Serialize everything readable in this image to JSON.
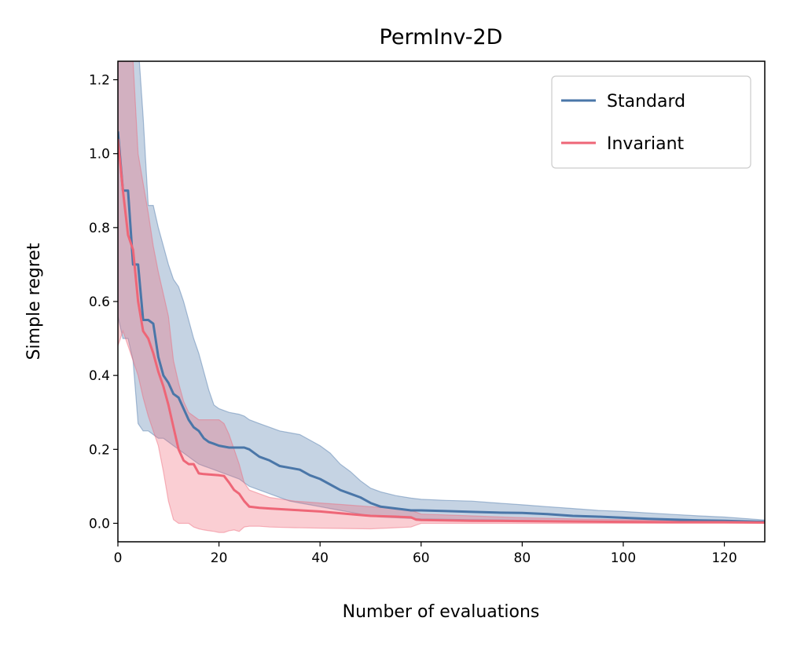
{
  "chart_data": {
    "type": "line",
    "title": "PermInv-2D",
    "xlabel": "Number of evaluations",
    "ylabel": "Simple regret",
    "xlim": [
      0,
      128
    ],
    "ylim": [
      -0.05,
      1.25
    ],
    "xticks": [
      0,
      20,
      40,
      60,
      80,
      100,
      120
    ],
    "xtick_labels": [
      "0",
      "20",
      "40",
      "60",
      "80",
      "100",
      "120"
    ],
    "yticks": [
      0.0,
      0.2,
      0.4,
      0.6,
      0.8,
      1.0,
      1.2
    ],
    "ytick_labels": [
      "0.0",
      "0.2",
      "0.4",
      "0.6",
      "0.8",
      "1.0",
      "1.2"
    ],
    "grid": false,
    "legend_position": "top-right",
    "series": [
      {
        "name": "Standard",
        "color": "#4a76a8",
        "x": [
          0,
          1,
          2,
          3,
          4,
          5,
          6,
          7,
          8,
          9,
          10,
          11,
          12,
          13,
          14,
          15,
          16,
          17,
          18,
          19,
          20,
          22,
          24,
          25,
          26,
          28,
          30,
          32,
          34,
          36,
          38,
          40,
          42,
          44,
          46,
          48,
          50,
          52,
          55,
          58,
          60,
          65,
          70,
          75,
          80,
          85,
          90,
          95,
          100,
          105,
          110,
          115,
          120,
          125,
          128
        ],
        "y": [
          1.06,
          0.9,
          0.9,
          0.7,
          0.7,
          0.55,
          0.55,
          0.54,
          0.45,
          0.4,
          0.38,
          0.35,
          0.34,
          0.31,
          0.28,
          0.26,
          0.25,
          0.23,
          0.22,
          0.215,
          0.21,
          0.205,
          0.205,
          0.205,
          0.2,
          0.18,
          0.17,
          0.155,
          0.15,
          0.145,
          0.13,
          0.12,
          0.105,
          0.09,
          0.08,
          0.07,
          0.055,
          0.045,
          0.04,
          0.035,
          0.035,
          0.033,
          0.031,
          0.029,
          0.028,
          0.025,
          0.02,
          0.018,
          0.015,
          0.012,
          0.01,
          0.008,
          0.007,
          0.005,
          0.004
        ],
        "upper": [
          1.3,
          1.3,
          1.3,
          1.3,
          1.3,
          1.1,
          0.86,
          0.86,
          0.8,
          0.75,
          0.7,
          0.66,
          0.64,
          0.6,
          0.55,
          0.5,
          0.46,
          0.41,
          0.36,
          0.32,
          0.31,
          0.3,
          0.295,
          0.29,
          0.28,
          0.27,
          0.26,
          0.25,
          0.245,
          0.24,
          0.225,
          0.21,
          0.19,
          0.16,
          0.14,
          0.115,
          0.095,
          0.085,
          0.075,
          0.068,
          0.065,
          0.062,
          0.06,
          0.055,
          0.05,
          0.045,
          0.04,
          0.035,
          0.032,
          0.028,
          0.024,
          0.02,
          0.017,
          0.012,
          0.009
        ],
        "lower": [
          0.56,
          0.5,
          0.5,
          0.44,
          0.27,
          0.25,
          0.25,
          0.24,
          0.23,
          0.23,
          0.22,
          0.21,
          0.2,
          0.19,
          0.18,
          0.17,
          0.16,
          0.155,
          0.15,
          0.145,
          0.14,
          0.13,
          0.12,
          0.11,
          0.1,
          0.09,
          0.08,
          0.07,
          0.06,
          0.055,
          0.05,
          0.045,
          0.04,
          0.035,
          0.03,
          0.025,
          0.02,
          0.017,
          0.015,
          0.013,
          0.012,
          0.011,
          0.01,
          0.009,
          0.008,
          0.007,
          0.006,
          0.005,
          0.004,
          0.003,
          0.003,
          0.002,
          0.002,
          0.001,
          0.001
        ]
      },
      {
        "name": "Invariant",
        "color": "#ee6677",
        "x": [
          0,
          1,
          2,
          3,
          4,
          5,
          6,
          7,
          8,
          9,
          10,
          11,
          12,
          13,
          14,
          15,
          16,
          17,
          18,
          19,
          20,
          21,
          22,
          23,
          24,
          25,
          26,
          28,
          30,
          35,
          40,
          45,
          50,
          55,
          58,
          59,
          60,
          70,
          80,
          90,
          100,
          110,
          120,
          128
        ],
        "y": [
          1.04,
          0.9,
          0.78,
          0.74,
          0.6,
          0.52,
          0.5,
          0.46,
          0.41,
          0.37,
          0.32,
          0.26,
          0.2,
          0.17,
          0.16,
          0.16,
          0.135,
          0.133,
          0.132,
          0.131,
          0.13,
          0.128,
          0.11,
          0.09,
          0.08,
          0.06,
          0.045,
          0.042,
          0.04,
          0.036,
          0.032,
          0.026,
          0.02,
          0.018,
          0.016,
          0.01,
          0.009,
          0.007,
          0.006,
          0.005,
          0.004,
          0.003,
          0.003,
          0.002
        ],
        "upper": [
          1.25,
          1.25,
          1.25,
          1.25,
          1.0,
          0.92,
          0.84,
          0.75,
          0.68,
          0.62,
          0.56,
          0.44,
          0.38,
          0.33,
          0.3,
          0.29,
          0.28,
          0.28,
          0.28,
          0.28,
          0.28,
          0.27,
          0.24,
          0.2,
          0.16,
          0.11,
          0.09,
          0.08,
          0.07,
          0.06,
          0.055,
          0.05,
          0.045,
          0.04,
          0.035,
          0.03,
          0.025,
          0.02,
          0.015,
          0.012,
          0.01,
          0.008,
          0.006,
          0.005
        ],
        "lower": [
          0.48,
          0.52,
          0.48,
          0.44,
          0.4,
          0.34,
          0.29,
          0.25,
          0.21,
          0.14,
          0.06,
          0.01,
          0.0,
          0.0,
          0.0,
          -0.01,
          -0.015,
          -0.018,
          -0.02,
          -0.022,
          -0.025,
          -0.025,
          -0.02,
          -0.018,
          -0.022,
          -0.01,
          -0.008,
          -0.008,
          -0.01,
          -0.012,
          -0.013,
          -0.014,
          -0.015,
          -0.012,
          -0.01,
          -0.005,
          0.0,
          0.0,
          0.0,
          0.0,
          0.0,
          0.0,
          0.0,
          0.0
        ]
      }
    ]
  }
}
